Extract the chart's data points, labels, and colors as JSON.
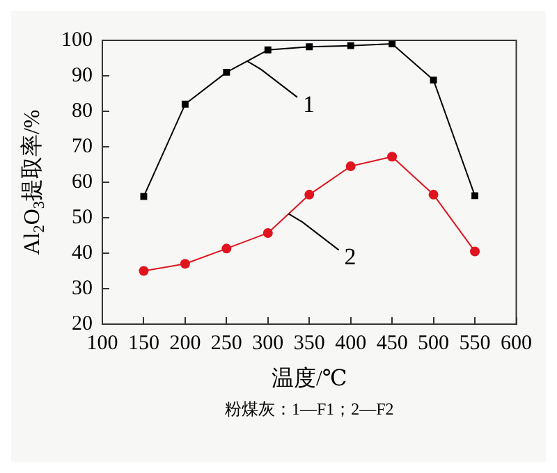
{
  "chart_data": {
    "type": "line",
    "xlabel": "温度/℃",
    "ylabel": "Al$_{2}$O$_{3}$提取率/%",
    "x": [
      150,
      200,
      250,
      300,
      350,
      400,
      450,
      500,
      550
    ],
    "series": [
      {
        "name": "1",
        "color": "#000000",
        "marker": "square",
        "values": [
          56,
          82,
          91,
          97.3,
          98.2,
          98.5,
          99,
          88.8,
          56.2
        ]
      },
      {
        "name": "2",
        "color": "#e0141e",
        "marker": "circle",
        "values": [
          35,
          37,
          41.3,
          45.7,
          56.5,
          64.5,
          67.2,
          56.5,
          40.5
        ]
      }
    ],
    "xlim": [
      100,
      600
    ],
    "xticks": [
      100,
      150,
      200,
      250,
      300,
      350,
      400,
      450,
      500,
      550,
      600
    ],
    "ylim": [
      20,
      100
    ],
    "yticks": [
      20,
      30,
      40,
      50,
      60,
      70,
      80,
      90,
      100
    ],
    "grid": false,
    "legend": false,
    "annotations": [
      "粉煤灰：1—F1；2—F2"
    ]
  }
}
